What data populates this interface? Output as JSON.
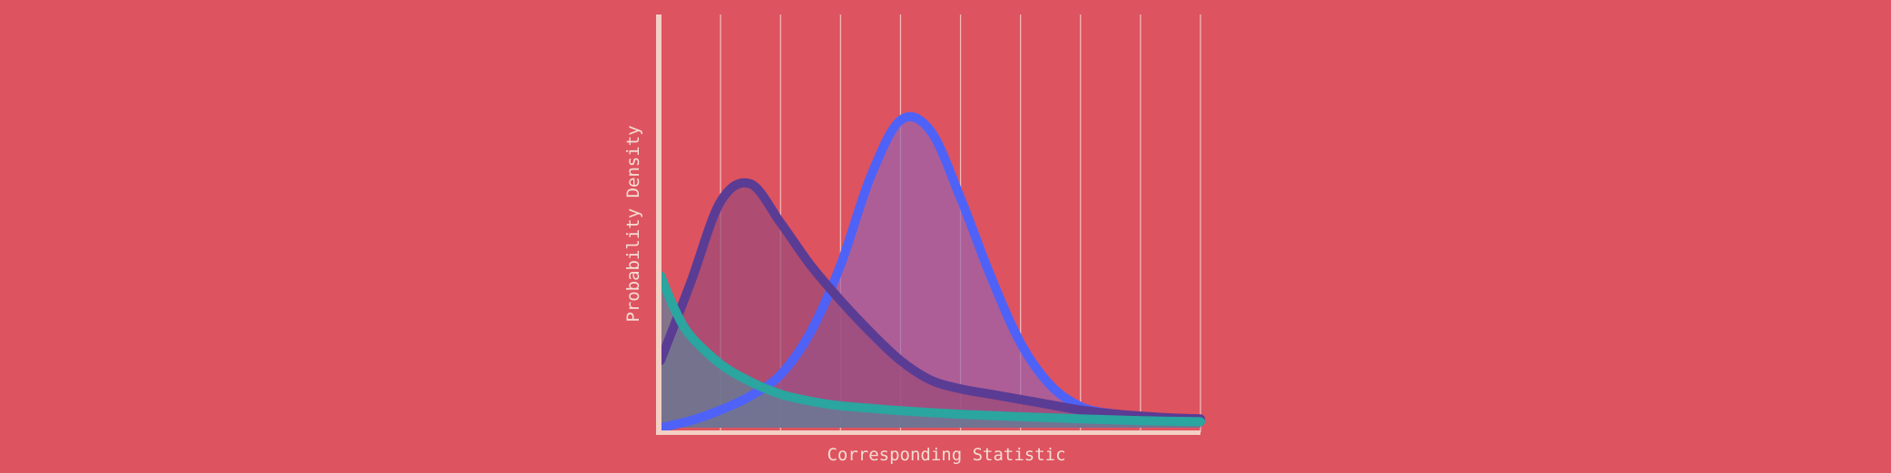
{
  "chart_data": {
    "type": "area",
    "xlabel": "Corresponding Statistic",
    "ylabel": "Probability Density",
    "x_range": [
      0,
      9
    ],
    "y_range": [
      0,
      1
    ],
    "grid": "vertical",
    "legend": "none",
    "series": [
      {
        "color": "#4f62f7",
        "fill": "#9b62aa",
        "x": [
          0,
          0.5,
          1,
          1.5,
          2,
          2.5,
          3,
          3.5,
          4,
          4.5,
          5,
          5.5,
          6,
          6.5,
          7,
          7.5,
          8,
          8.5,
          9
        ],
        "values": [
          0.0,
          0.02,
          0.05,
          0.09,
          0.15,
          0.27,
          0.46,
          0.71,
          0.87,
          0.84,
          0.65,
          0.43,
          0.24,
          0.12,
          0.06,
          0.04,
          0.03,
          0.025,
          0.02
        ]
      },
      {
        "color": "#5a3c94",
        "fill": "#9b4a79",
        "x": [
          0,
          0.5,
          1,
          1.5,
          2,
          2.5,
          3,
          3.5,
          4,
          4.5,
          5,
          5.5,
          6,
          6.5,
          7,
          7.5,
          8,
          8.5,
          9
        ],
        "values": [
          0.19,
          0.41,
          0.64,
          0.69,
          0.58,
          0.46,
          0.36,
          0.27,
          0.19,
          0.135,
          0.11,
          0.095,
          0.08,
          0.065,
          0.05,
          0.04,
          0.033,
          0.028,
          0.025
        ]
      },
      {
        "color": "#2aa59f",
        "fill": "#5f8199",
        "x": [
          0,
          0.25,
          0.5,
          1,
          1.5,
          2,
          2.5,
          3,
          3.5,
          4,
          5,
          6,
          7,
          8,
          9
        ],
        "values": [
          0.43,
          0.33,
          0.26,
          0.18,
          0.13,
          0.095,
          0.075,
          0.062,
          0.055,
          0.048,
          0.038,
          0.031,
          0.025,
          0.02,
          0.017
        ]
      }
    ]
  }
}
